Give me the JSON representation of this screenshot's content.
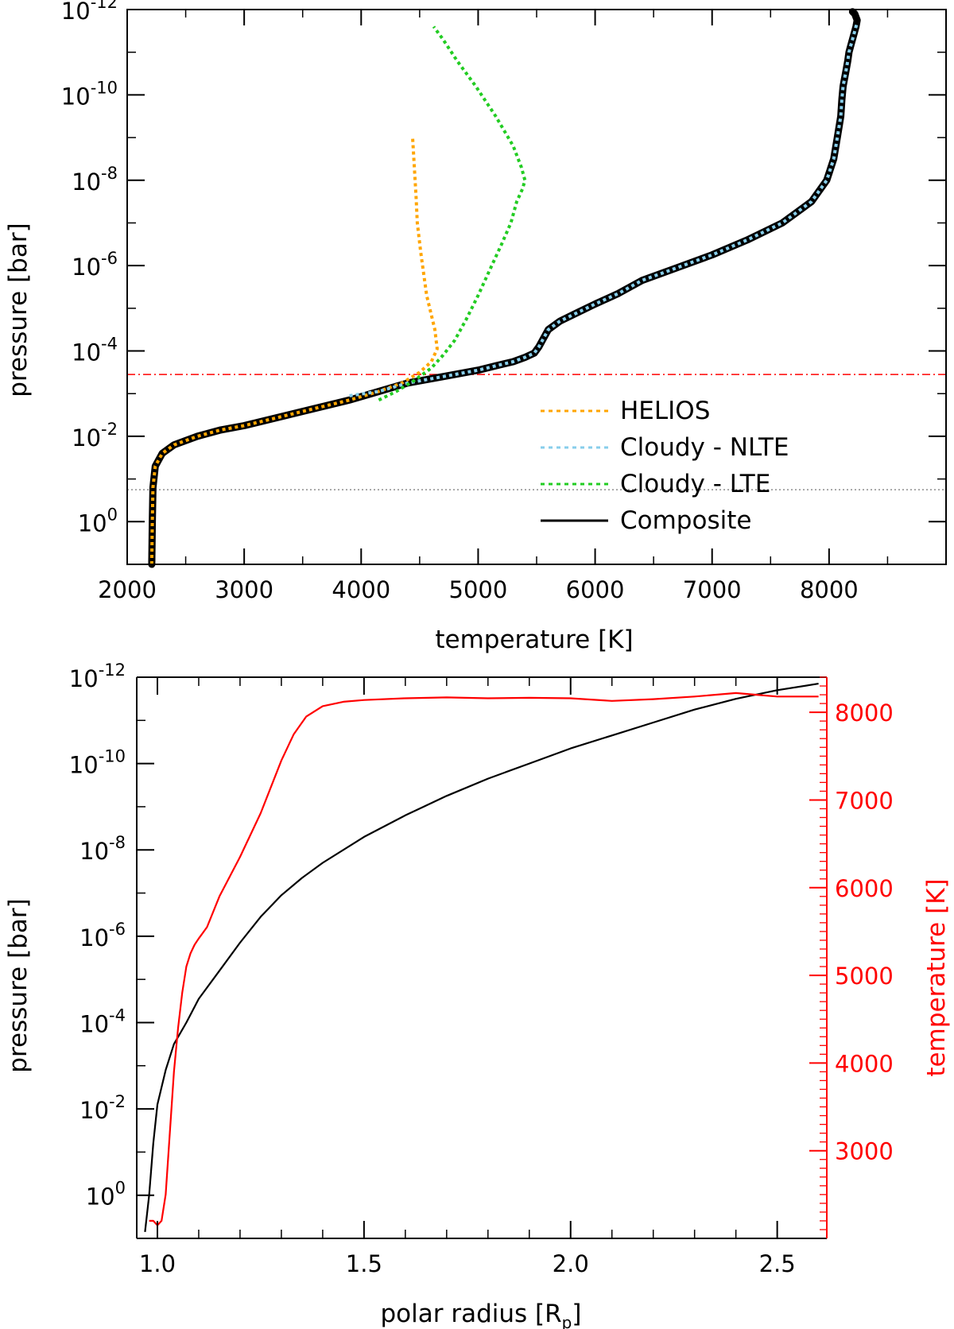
{
  "chart_data": [
    {
      "type": "line",
      "xlabel": "temperature [K]",
      "ylabel": "pressure [bar]",
      "xlim": [
        2000,
        9000
      ],
      "xticks": [
        "2000",
        "3000",
        "4000",
        "5000",
        "6000",
        "7000",
        "8000"
      ],
      "ylim_log10": [
        1,
        -12
      ],
      "y_scale": "log",
      "yticks": [
        {
          "base": "10",
          "exp": "-12",
          "log10": -12
        },
        {
          "base": "10",
          "exp": "-10",
          "log10": -10
        },
        {
          "base": "10",
          "exp": "-8",
          "log10": -8
        },
        {
          "base": "10",
          "exp": "-6",
          "log10": -6
        },
        {
          "base": "10",
          "exp": "-4",
          "log10": -4
        },
        {
          "base": "10",
          "exp": "-2",
          "log10": -2
        },
        {
          "base": "10",
          "exp": "0",
          "log10": 0
        }
      ],
      "legend_position": "bottom-right",
      "series": [
        {
          "name": "Composite",
          "color": "#000000",
          "style": "solid-thick",
          "x": [
            2210,
            2215,
            2220,
            2240,
            2300,
            2400,
            2600,
            2800,
            3000,
            3300,
            3600,
            3900,
            4150,
            4400,
            4700,
            5000,
            5150,
            5300,
            5400,
            5480,
            5520,
            5560,
            5600,
            5700,
            5850,
            6000,
            6200,
            6400,
            6700,
            7000,
            7300,
            7600,
            7850,
            7980,
            8040,
            8070,
            8100,
            8110,
            8120,
            8140,
            8160,
            8170,
            8190,
            8210,
            8230,
            8240,
            8220,
            8200
          ],
          "y_log10": [
            1.0,
            0.0,
            -0.8,
            -1.3,
            -1.6,
            -1.8,
            -2.0,
            -2.15,
            -2.25,
            -2.45,
            -2.65,
            -2.85,
            -3.05,
            -3.25,
            -3.4,
            -3.55,
            -3.65,
            -3.75,
            -3.85,
            -3.95,
            -4.1,
            -4.3,
            -4.5,
            -4.7,
            -4.9,
            -5.1,
            -5.35,
            -5.65,
            -5.95,
            -6.25,
            -6.6,
            -7.0,
            -7.5,
            -8.0,
            -8.5,
            -9.0,
            -9.5,
            -9.9,
            -10.2,
            -10.5,
            -10.8,
            -11.0,
            -11.2,
            -11.4,
            -11.6,
            -11.75,
            -11.9,
            -11.95
          ]
        },
        {
          "name": "HELIOS",
          "color": "#ffa500",
          "style": "dotted",
          "x": [
            2210,
            2215,
            2220,
            2240,
            2300,
            2400,
            2600,
            2800,
            3000,
            3300,
            3600,
            3900,
            4150,
            4350,
            4500,
            4600,
            4650,
            4630,
            4560,
            4510,
            4480,
            4470,
            4455,
            4440
          ],
          "y_log10": [
            1.0,
            0.0,
            -0.8,
            -1.3,
            -1.6,
            -1.8,
            -2.0,
            -2.15,
            -2.25,
            -2.45,
            -2.65,
            -2.85,
            -3.05,
            -3.25,
            -3.5,
            -3.75,
            -4.05,
            -4.5,
            -5.3,
            -6.3,
            -7.0,
            -7.6,
            -8.3,
            -9.0
          ]
        },
        {
          "name": "Cloudy - NLTE",
          "color": "#87ceeb",
          "style": "dotted",
          "x": [
            3900,
            4150,
            4400,
            4700,
            5000,
            5150,
            5300,
            5400,
            5480,
            5520,
            5560,
            5600,
            5700,
            5850,
            6000,
            6200,
            6400,
            6700,
            7000,
            7300,
            7600,
            7850,
            7980,
            8040,
            8070,
            8100,
            8110,
            8120,
            8140,
            8160,
            8170,
            8190,
            8210,
            8230,
            8240
          ],
          "y_log10": [
            -2.95,
            -3.05,
            -3.25,
            -3.4,
            -3.55,
            -3.65,
            -3.75,
            -3.85,
            -3.95,
            -4.1,
            -4.3,
            -4.5,
            -4.7,
            -4.9,
            -5.1,
            -5.35,
            -5.65,
            -5.95,
            -6.25,
            -6.6,
            -7.0,
            -7.5,
            -8.0,
            -8.5,
            -9.0,
            -9.5,
            -9.9,
            -10.2,
            -10.5,
            -10.8,
            -11.0,
            -11.2,
            -11.4,
            -11.6,
            -11.7
          ]
        },
        {
          "name": "Cloudy - LTE",
          "color": "#22cc22",
          "style": "dotted",
          "x": [
            4150,
            4300,
            4450,
            4600,
            4700,
            4800,
            4900,
            5000,
            5100,
            5200,
            5280,
            5330,
            5380,
            5400,
            5370,
            5300,
            5150,
            4980,
            4820,
            4700,
            4620
          ],
          "y_log10": [
            -2.85,
            -3.05,
            -3.3,
            -3.6,
            -3.9,
            -4.25,
            -4.75,
            -5.3,
            -5.9,
            -6.5,
            -7.0,
            -7.5,
            -7.8,
            -8.0,
            -8.3,
            -8.8,
            -9.5,
            -10.2,
            -10.8,
            -11.3,
            -11.6
          ]
        }
      ],
      "reference_lines": [
        {
          "log10": -3.45,
          "color": "#ff0000",
          "style": "dash-dot"
        },
        {
          "log10": -0.75,
          "color": "#000000",
          "style": "dotted"
        }
      ]
    },
    {
      "type": "line",
      "xlabel_main": "polar radius [R",
      "xlabel_sub": "p",
      "xlabel_end": "]",
      "ylabel": "pressure [bar]",
      "y2label": "temperature [K]",
      "xlim": [
        0.95,
        2.62
      ],
      "xticks": [
        "1.0",
        "1.5",
        "2.0",
        "2.5"
      ],
      "ylim_log10": [
        1,
        -12
      ],
      "y_scale": "log",
      "yticks": [
        {
          "base": "10",
          "exp": "-12",
          "log10": -12
        },
        {
          "base": "10",
          "exp": "-10",
          "log10": -10
        },
        {
          "base": "10",
          "exp": "-8",
          "log10": -8
        },
        {
          "base": "10",
          "exp": "-6",
          "log10": -6
        },
        {
          "base": "10",
          "exp": "-4",
          "log10": -4
        },
        {
          "base": "10",
          "exp": "-2",
          "log10": -2
        },
        {
          "base": "10",
          "exp": "0",
          "log10": 0
        }
      ],
      "y2lim": [
        2000,
        8400
      ],
      "y2ticks": [
        "3000",
        "4000",
        "5000",
        "6000",
        "7000",
        "8000"
      ],
      "series": [
        {
          "name": "pressure",
          "color": "#000000",
          "axis": "left",
          "x": [
            0.97,
            0.98,
            0.99,
            1.0,
            1.02,
            1.04,
            1.07,
            1.1,
            1.15,
            1.2,
            1.25,
            1.3,
            1.35,
            1.4,
            1.5,
            1.6,
            1.7,
            1.8,
            1.9,
            2.0,
            2.1,
            2.2,
            2.3,
            2.4,
            2.5,
            2.6
          ],
          "y_log10": [
            0.85,
            0.0,
            -1.2,
            -2.1,
            -2.9,
            -3.5,
            -4.0,
            -4.55,
            -5.2,
            -5.85,
            -6.45,
            -6.95,
            -7.35,
            -7.7,
            -8.3,
            -8.8,
            -9.25,
            -9.65,
            -10.0,
            -10.35,
            -10.65,
            -10.95,
            -11.25,
            -11.5,
            -11.7,
            -11.85
          ]
        },
        {
          "name": "temperature",
          "color": "#ff0000",
          "axis": "right",
          "x": [
            0.98,
            0.99,
            1.0,
            1.01,
            1.02,
            1.03,
            1.04,
            1.05,
            1.06,
            1.07,
            1.08,
            1.09,
            1.1,
            1.12,
            1.15,
            1.2,
            1.25,
            1.3,
            1.33,
            1.36,
            1.4,
            1.45,
            1.5,
            1.6,
            1.7,
            1.8,
            1.9,
            2.0,
            2.1,
            2.2,
            2.3,
            2.4,
            2.45,
            2.5,
            2.6
          ],
          "y": [
            2200,
            2200,
            2150,
            2200,
            2500,
            3200,
            3900,
            4400,
            4800,
            5100,
            5250,
            5350,
            5420,
            5550,
            5900,
            6350,
            6850,
            7450,
            7750,
            7950,
            8070,
            8120,
            8140,
            8160,
            8170,
            8160,
            8165,
            8160,
            8130,
            8150,
            8180,
            8220,
            8200,
            8180,
            8180
          ]
        }
      ]
    }
  ]
}
